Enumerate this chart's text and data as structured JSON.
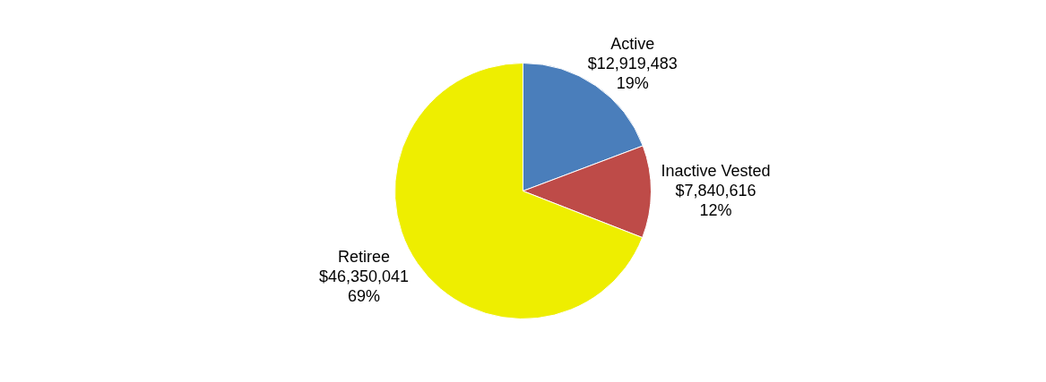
{
  "chart_data": {
    "type": "pie",
    "categories": [
      "Active",
      "Inactive Vested",
      "Retiree"
    ],
    "values": [
      12919483,
      7840616,
      46350041
    ],
    "colors": [
      "#4a7ebb",
      "#be4b48",
      "#eeee00"
    ],
    "value_labels": [
      "$12,919,483\n19%",
      "$7,840,616\n12%",
      "$46,350,041\n69%"
    ],
    "legend": false
  }
}
